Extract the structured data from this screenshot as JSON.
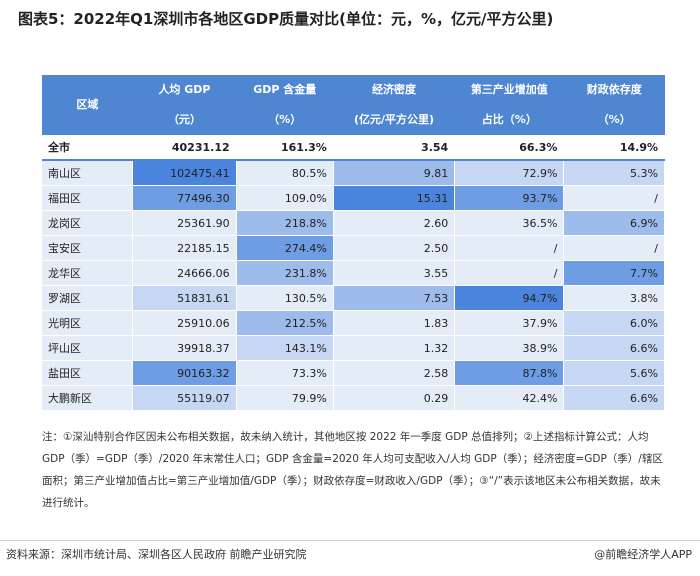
{
  "title": "图表5：2022年Q1深圳市各地区GDP质量对比(单位：元，%，亿元/平方公里)",
  "table": {
    "header": [
      [
        "区域"
      ],
      [
        "人均 GDP",
        "（元）"
      ],
      [
        "GDP 含金量",
        "（%）"
      ],
      [
        "经济密度",
        "(亿元/平方公里)"
      ],
      [
        "第三产业增加值",
        "占比（%）"
      ],
      [
        "财政依存度",
        "（%）"
      ]
    ],
    "rows": [
      [
        "全市",
        "40231.12",
        "161.3%",
        "3.54",
        "66.3%",
        "14.9%"
      ],
      [
        "南山区",
        "102475.41",
        "80.5%",
        "9.81",
        "72.9%",
        "5.3%"
      ],
      [
        "福田区",
        "77496.30",
        "109.0%",
        "15.31",
        "93.7%",
        "/"
      ],
      [
        "龙岗区",
        "25361.90",
        "218.8%",
        "2.60",
        "36.5%",
        "6.9%"
      ],
      [
        "宝安区",
        "22185.15",
        "274.4%",
        "2.50",
        "/",
        "/"
      ],
      [
        "龙华区",
        "24666.06",
        "231.8%",
        "3.55",
        "/",
        "7.7%"
      ],
      [
        "罗湖区",
        "51831.61",
        "130.5%",
        "7.53",
        "94.7%",
        "3.8%"
      ],
      [
        "光明区",
        "25910.06",
        "212.5%",
        "1.83",
        "37.9%",
        "6.0%"
      ],
      [
        "坪山区",
        "39918.37",
        "143.1%",
        "1.32",
        "38.9%",
        "6.6%"
      ],
      [
        "盐田区",
        "90163.32",
        "73.3%",
        "2.58",
        "87.8%",
        "5.6%"
      ],
      [
        "大鹏新区",
        "55119.07",
        "79.9%",
        "0.29",
        "42.4%",
        "6.6%"
      ]
    ],
    "cell_colors": [
      [
        "#ffffff",
        "#ffffff",
        "#ffffff",
        "#ffffff",
        "#ffffff",
        "#ffffff"
      ],
      [
        "#e4ecf8",
        "#4a84dc",
        "#e4ecf8",
        "#9dbbeb",
        "#c5d7f2",
        "#c5d7f2"
      ],
      [
        "#e4ecf8",
        "#6f9de3",
        "#e4ecf8",
        "#4a84dc",
        "#6f9de3",
        "#e4ecf8"
      ],
      [
        "#e4ecf8",
        "#e4ecf8",
        "#9dbbeb",
        "#e4ecf8",
        "#e4ecf8",
        "#9dbbeb"
      ],
      [
        "#e4ecf8",
        "#e4ecf8",
        "#6f9de3",
        "#e4ecf8",
        "#e4ecf8",
        "#e4ecf8"
      ],
      [
        "#e4ecf8",
        "#e4ecf8",
        "#9dbbeb",
        "#e4ecf8",
        "#e4ecf8",
        "#6f9de3"
      ],
      [
        "#e4ecf8",
        "#c5d7f2",
        "#e4ecf8",
        "#9dbbeb",
        "#4a84dc",
        "#e4ecf8"
      ],
      [
        "#e4ecf8",
        "#e4ecf8",
        "#9dbbeb",
        "#e4ecf8",
        "#e4ecf8",
        "#c5d7f2"
      ],
      [
        "#e4ecf8",
        "#e4ecf8",
        "#c5d7f2",
        "#e4ecf8",
        "#e4ecf8",
        "#c5d7f2"
      ],
      [
        "#e4ecf8",
        "#6f9de3",
        "#e4ecf8",
        "#e4ecf8",
        "#6f9de3",
        "#c5d7f2"
      ],
      [
        "#e4ecf8",
        "#c5d7f2",
        "#e4ecf8",
        "#e4ecf8",
        "#e4ecf8",
        "#c5d7f2"
      ]
    ]
  },
  "note": "注：①深汕特别合作区因未公布相关数据，故未纳入统计，其他地区按 2022 年一季度 GDP 总值排列；②上述指标计算公式：人均 GDP（季）=GDP（季）/2020 年末常住人口；GDP 含金量=2020 年人均可支配收入/人均 GDP（季）；经济密度=GDP（季）/辖区面积；第三产业增加值占比=第三产业增加值/GDP（季）；财政依存度=财政收入/GDP（季）；③“/”表示该地区未公布相关数据，故未进行统计。",
  "source": "资料来源：深圳市统计局、深圳各区人民政府 前瞻产业研究院",
  "brand": "@前瞻经济学人APP"
}
